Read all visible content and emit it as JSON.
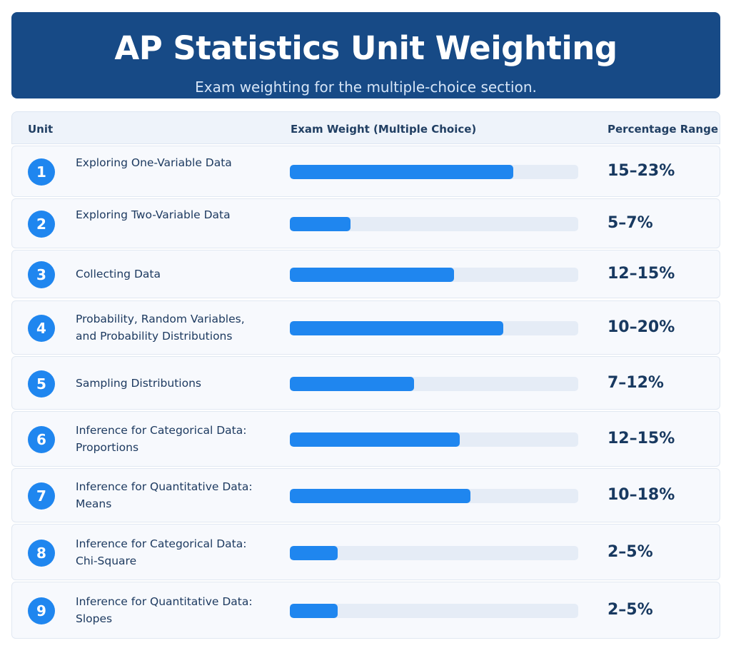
{
  "header": {
    "title": "AP Statistics Unit Weighting",
    "subtitle": "Exam weighting for the multiple-choice section."
  },
  "table": {
    "col_unit": "Unit",
    "col_weight": "Exam Weight (Multiple Choice)",
    "col_range": "Percentage Range"
  },
  "colors": {
    "header_bg": "#174a86",
    "accent": "#1f86ef",
    "track": "#e5ecf6"
  },
  "chart_data": {
    "type": "bar",
    "categories": [
      "Exploring One-Variable Data",
      "Exploring Two-Variable Data",
      "Collecting Data",
      "Probability, Random Variables, and Probability Distributions",
      "Sampling Distributions",
      "Inference for Categorical Data: Proportions",
      "Inference for Quantitative Data: Means",
      "Inference for Categorical Data: Chi-Square",
      "Inference for Quantitative Data: Slopes"
    ],
    "units": [
      "1",
      "2",
      "3",
      "4",
      "5",
      "6",
      "7",
      "8",
      "9"
    ],
    "ranges": [
      "15–23%",
      "5–7%",
      "12–15%",
      "10–20%",
      "7–12%",
      "12–15%",
      "10–18%",
      "2–5%",
      "2–5%"
    ],
    "values": [
      0.775,
      0.21,
      0.57,
      0.74,
      0.43,
      0.59,
      0.625,
      0.165,
      0.165
    ],
    "title": "AP Statistics Unit Weighting",
    "xlabel": "",
    "ylabel": "Exam Weight (Multiple Choice)",
    "ylim": [
      0,
      1
    ],
    "grid": false
  }
}
